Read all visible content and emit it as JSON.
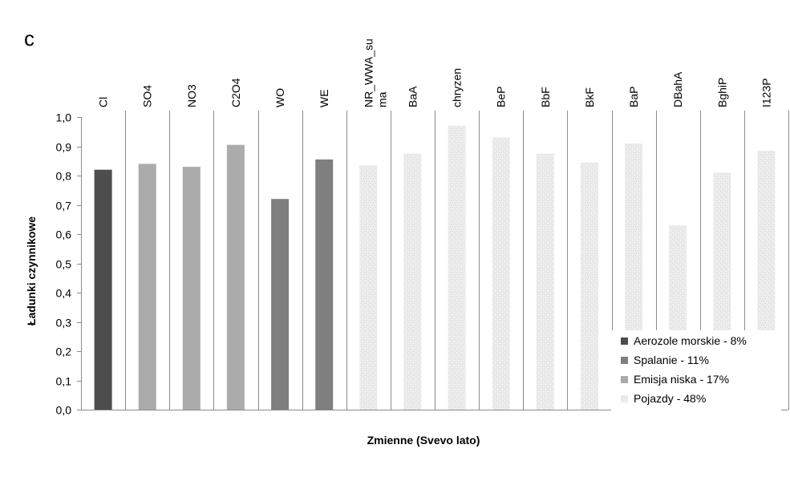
{
  "chart_data": {
    "type": "bar",
    "panel_label": "c",
    "xlabel": "Zmienne (Svevo lato)",
    "ylabel": "Ładunki czynnikowe",
    "ylim": [
      0,
      1.0
    ],
    "yticks": [
      "0,0",
      "0,1",
      "0,2",
      "0,3",
      "0,4",
      "0,5",
      "0,6",
      "0,7",
      "0,8",
      "0,9",
      "1,0"
    ],
    "grid": "vertical category dividers",
    "legend_position": "bottom-right",
    "categories": [
      "Cl",
      "SO4",
      "NO3",
      "C2O4",
      "WO",
      "WE",
      "NR_WWA_suma",
      "BaA",
      "chryzen",
      "BeP",
      "BbF",
      "BkF",
      "BaP",
      "DBahA",
      "BghiP",
      "I123P"
    ],
    "category_display": [
      "Cl",
      "SO4",
      "NO3",
      "C2O4",
      "WO",
      "WE",
      "NR_WWA_su|ma",
      "BaA",
      "chryzen",
      "BeP",
      "BbF",
      "BkF",
      "BaP",
      "DBahA",
      "BghiP",
      "I123P"
    ],
    "values": [
      0.82,
      0.84,
      0.83,
      0.905,
      0.72,
      0.855,
      0.835,
      0.875,
      0.97,
      0.93,
      0.875,
      0.845,
      0.91,
      0.63,
      0.81,
      0.885
    ],
    "value_series": [
      0,
      2,
      2,
      2,
      1,
      1,
      3,
      3,
      3,
      3,
      3,
      3,
      3,
      3,
      3,
      3
    ],
    "series": [
      {
        "name": "Aerozole morskie - 8%",
        "color": "#4d4d4d"
      },
      {
        "name": "Spalanie - 11%",
        "color": "#7f7f7f"
      },
      {
        "name": "Emisja niska - 17%",
        "color": "#ababab"
      },
      {
        "name": "Pojazdy - 48%",
        "color": "#ebebeb"
      }
    ]
  }
}
